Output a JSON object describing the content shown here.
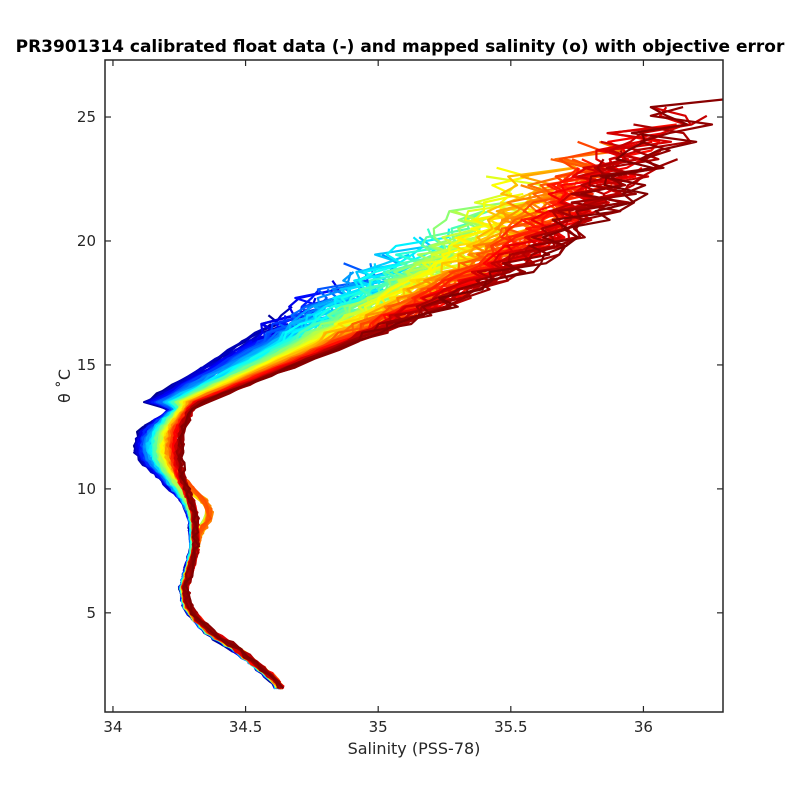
{
  "chart_data": {
    "type": "line",
    "title": "PR3901314 calibrated float data (-) and mapped salinity (o) with objective error",
    "xlabel": "Salinity (PSS-78)",
    "ylabel": "θ ˚C",
    "xlim": [
      33.97,
      36.3
    ],
    "ylim": [
      1.0,
      27.3
    ],
    "xticks": [
      34,
      34.5,
      35,
      35.5,
      36
    ],
    "xtick_labels": [
      "34",
      "34.5",
      "35",
      "35.5",
      "36"
    ],
    "yticks": [
      5,
      10,
      15,
      20,
      25
    ],
    "ytick_labels": [
      "5",
      "10",
      "15",
      "20",
      "25"
    ],
    "grid": false,
    "legend": "none",
    "colormap": "jet",
    "colormap_stops": [
      "#00008f",
      "#0000ff",
      "#0080ff",
      "#00ffff",
      "#80ff80",
      "#ffff00",
      "#ff8000",
      "#ff0000",
      "#800000"
    ],
    "profile_count": 120,
    "deep_profile": {
      "s": [
        34.62,
        34.58,
        34.52,
        34.45,
        34.37,
        34.31,
        34.27,
        34.26,
        34.28,
        34.3,
        34.29,
        34.27,
        34.25,
        34.24,
        34.25,
        34.29
      ],
      "t": [
        2.1,
        2.5,
        3.0,
        3.6,
        4.1,
        4.7,
        5.3,
        6.0,
        6.8,
        7.6,
        8.5,
        9.4,
        10.4,
        11.4,
        12.4,
        13.3
      ]
    },
    "series": [
      {
        "s": [
          34.25,
          34.38,
          34.5,
          34.62,
          34.75,
          34.88,
          35.0
        ],
        "t": [
          13.3,
          14.2,
          15.0,
          15.9,
          16.9,
          18.3,
          20.0
        ]
      },
      {
        "s": [
          34.3,
          34.7,
          35.0,
          35.3,
          35.6,
          35.8,
          36.0,
          36.2
        ],
        "t": [
          13.3,
          15.0,
          16.3,
          17.7,
          19.3,
          21.0,
          23.0,
          25.4
        ]
      }
    ]
  }
}
